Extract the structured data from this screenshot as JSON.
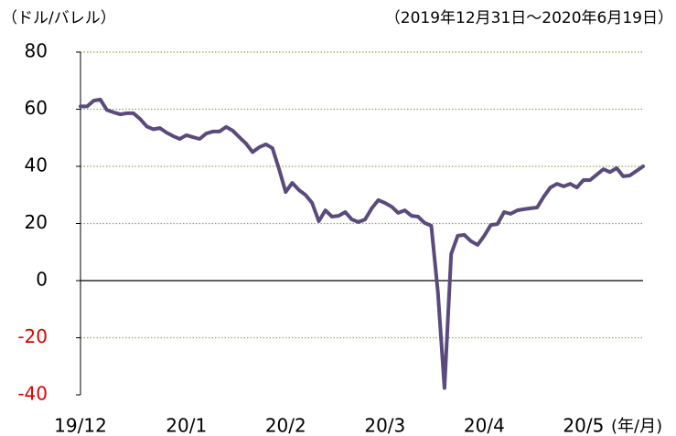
{
  "chart_data": {
    "type": "line",
    "y_unit": "（ドル/バレル）",
    "subtitle": "（2019年12月31日～2020年6月19日）",
    "x_unit": "(年/月)",
    "categories": [
      "19/12",
      null,
      null,
      null,
      null,
      null,
      null,
      null,
      null,
      null,
      null,
      null,
      null,
      null,
      null,
      null,
      "20/1",
      null,
      null,
      null,
      null,
      null,
      null,
      null,
      null,
      null,
      null,
      null,
      null,
      null,
      null,
      "20/2",
      null,
      null,
      null,
      null,
      null,
      null,
      null,
      null,
      null,
      null,
      null,
      null,
      null,
      null,
      "20/3",
      null,
      null,
      null,
      null,
      null,
      null,
      null,
      null,
      null,
      null,
      null,
      null,
      null,
      null,
      "20/4",
      null,
      null,
      null,
      null,
      null,
      null,
      null,
      null,
      null,
      null,
      null,
      null,
      null,
      null,
      "20/5",
      null,
      null,
      null,
      null,
      null,
      null,
      null,
      null,
      null
    ],
    "series": [
      {
        "color": "#5b4a7c",
        "values": [
          61,
          61,
          63,
          63.4,
          59.7,
          58.9,
          58.2,
          58.6,
          58.6,
          56.6,
          54,
          53,
          53.4,
          51.8,
          50.6,
          49.6,
          50.9,
          50.2,
          49.6,
          51.5,
          52.2,
          52.2,
          53.8,
          52.5,
          50.2,
          48,
          45,
          46.7,
          47.7,
          46.4,
          39,
          31,
          34.2,
          31.7,
          30,
          27.2,
          20.8,
          24.6,
          22.4,
          22.7,
          24,
          21.4,
          20.5,
          21.4,
          25.3,
          28.2,
          27.2,
          25.9,
          23.7,
          24.6,
          22.7,
          22.4,
          20.2,
          19.2,
          -4,
          -37.6,
          9.3,
          15.7,
          16,
          13.8,
          12.5,
          15.7,
          19.5,
          19.8,
          24,
          23.4,
          24.6,
          25,
          25.3,
          25.6,
          29.4,
          32.6,
          33.9,
          33,
          33.9,
          32.6,
          35.2,
          35.2,
          37.1,
          39,
          38,
          39.4,
          36.5,
          36.8,
          38.4,
          40
        ]
      }
    ],
    "ylim": [
      -40,
      80
    ],
    "yticks": [
      -40,
      -20,
      0,
      20,
      40,
      60,
      80
    ],
    "grid": true,
    "grid_color": "#a0a050",
    "zero_line_color": "#000000",
    "negative_tick_color": "#e00000"
  }
}
